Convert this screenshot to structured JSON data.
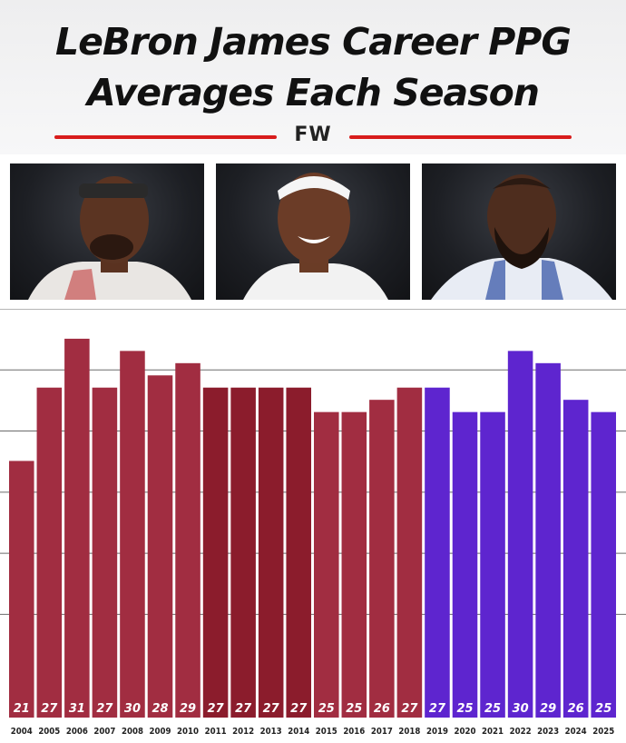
{
  "header": {
    "title_line1": "LeBron James Career PPG",
    "title_line2": "Averages Each Season",
    "logo_text": "FW",
    "rule_color": "#d81c1c"
  },
  "photos": [
    {
      "description": "LeBron James portrait, early career, headband, white jersey"
    },
    {
      "description": "LeBron James portrait, smiling, white headband, white jersey"
    },
    {
      "description": "LeBron James portrait, later career, beard, white jersey"
    }
  ],
  "chart_data": {
    "type": "bar",
    "categories": [
      "2004",
      "2005",
      "2006",
      "2007",
      "2008",
      "2009",
      "2010",
      "2011",
      "2012",
      "2013",
      "2014",
      "2015",
      "2016",
      "2017",
      "2018",
      "2019",
      "2020",
      "2021",
      "2022",
      "2023",
      "2024",
      "2025"
    ],
    "values": [
      21,
      27,
      31,
      27,
      30,
      28,
      29,
      27,
      27,
      27,
      27,
      25,
      25,
      26,
      27,
      27,
      25,
      25,
      30,
      29,
      26,
      25
    ],
    "data_labels": [
      "21",
      "27",
      "31",
      "27",
      "30",
      "28",
      "29",
      "27",
      "27",
      "27",
      "27",
      "25",
      "25",
      "26",
      "27",
      "27",
      "25",
      "25",
      "30",
      "29",
      "26",
      "25"
    ],
    "team_colors": [
      "#a12d41",
      "#a12d41",
      "#a12d41",
      "#a12d41",
      "#a12d41",
      "#a12d41",
      "#a12d41",
      "#8b1c2c",
      "#8b1c2c",
      "#8b1c2c",
      "#8b1c2c",
      "#a12d41",
      "#a12d41",
      "#a12d41",
      "#a12d41",
      "#5e25cf",
      "#5e25cf",
      "#5e25cf",
      "#5e25cf",
      "#5e25cf",
      "#5e25cf",
      "#5e25cf"
    ],
    "ylim": [
      0,
      33
    ],
    "gridlines": [
      8,
      13,
      18,
      23,
      28,
      33
    ],
    "grid": true,
    "title": "",
    "xlabel": "",
    "ylabel": ""
  }
}
